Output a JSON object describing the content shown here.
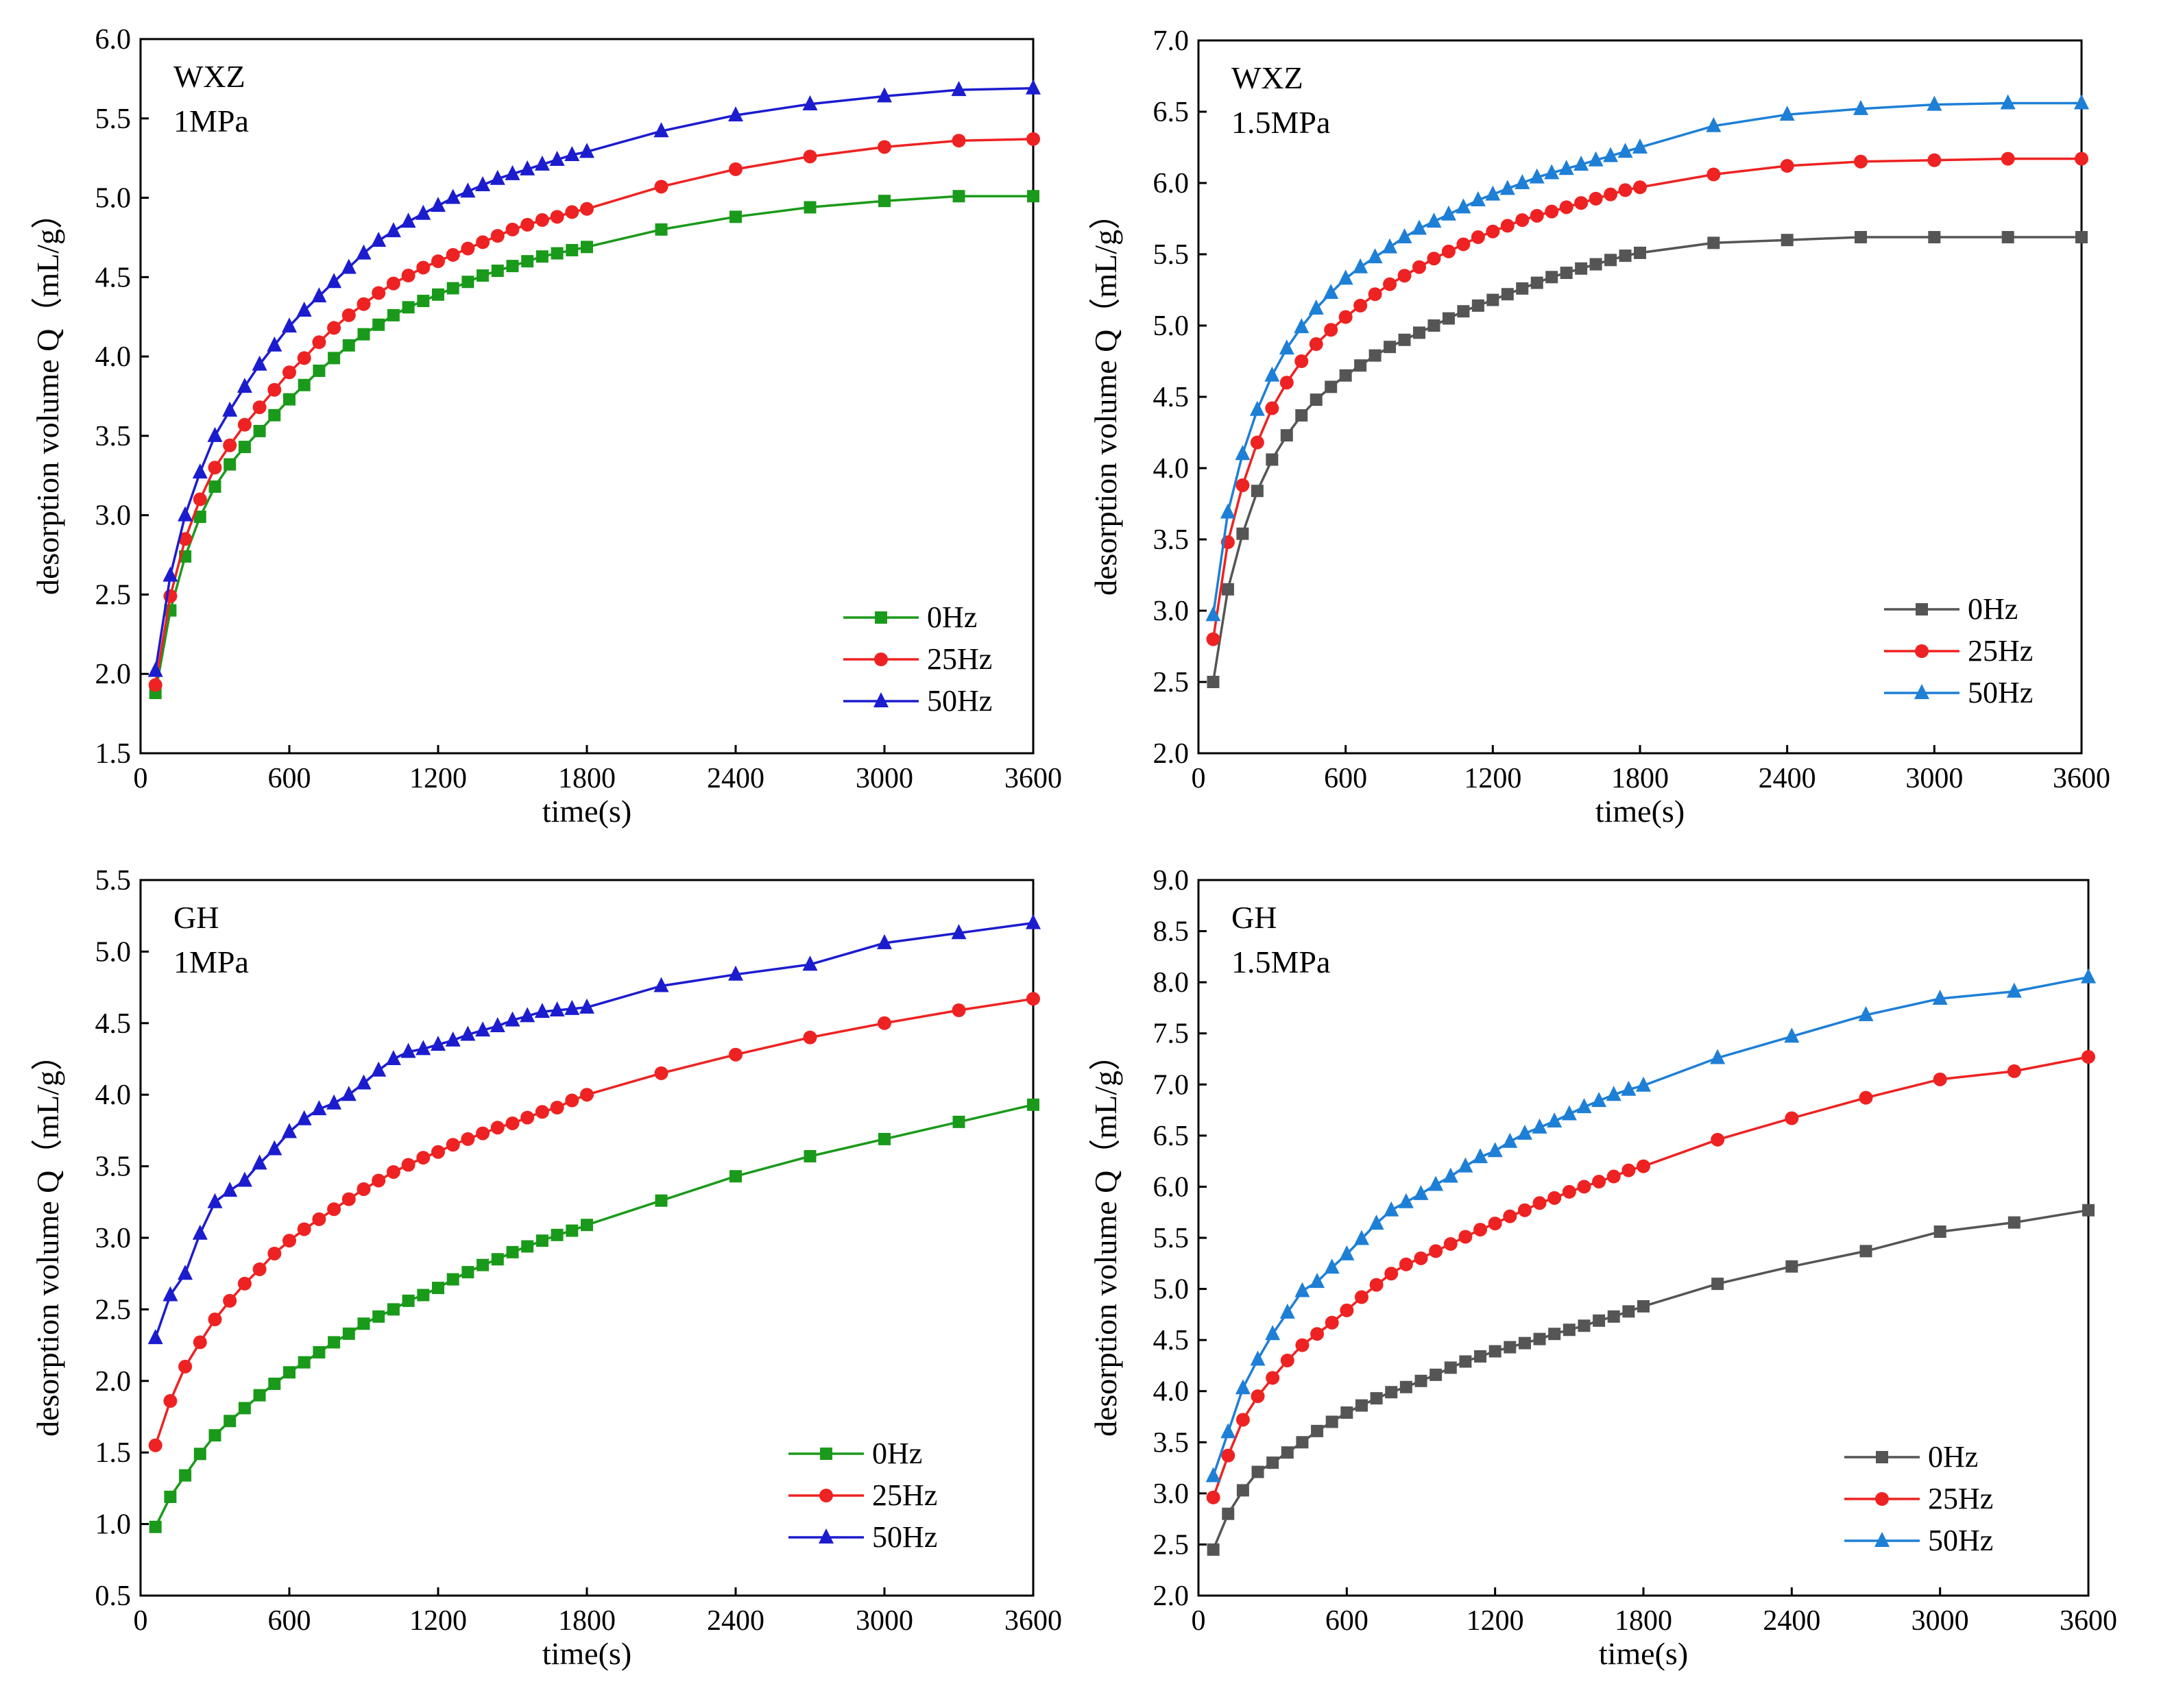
{
  "chart_data": [
    {
      "type": "line",
      "panel_label_line1": "WXZ",
      "panel_label_line2": "1MPa",
      "xlabel": "time(s)",
      "ylabel": "desorption volume Q（mL/g）",
      "xlim": [
        0,
        3600
      ],
      "ylim": [
        1.5,
        6.0
      ],
      "xticks": [
        "0",
        "600",
        "1200",
        "1800",
        "2400",
        "3000",
        "3600"
      ],
      "yticks": [
        "1.5",
        "2.0",
        "2.5",
        "3.0",
        "3.5",
        "4.0",
        "4.5",
        "5.0",
        "5.5",
        "6.0"
      ],
      "legend_position": "bottom-right",
      "x": [
        60,
        120,
        180,
        240,
        300,
        360,
        420,
        480,
        540,
        600,
        660,
        720,
        780,
        840,
        900,
        960,
        1020,
        1080,
        1140,
        1200,
        1260,
        1320,
        1380,
        1440,
        1500,
        1560,
        1620,
        1680,
        1740,
        1800,
        2100,
        2400,
        2700,
        3000,
        3300,
        3600
      ],
      "series": [
        {
          "name": "0Hz",
          "color": "#1a9a1a",
          "marker": "square",
          "values": [
            1.88,
            2.4,
            2.74,
            2.99,
            3.18,
            3.32,
            3.43,
            3.53,
            3.63,
            3.73,
            3.82,
            3.91,
            3.99,
            4.07,
            4.14,
            4.2,
            4.26,
            4.31,
            4.35,
            4.39,
            4.43,
            4.47,
            4.51,
            4.54,
            4.57,
            4.6,
            4.63,
            4.65,
            4.67,
            4.69,
            4.8,
            4.88,
            4.94,
            4.98,
            5.01,
            5.01
          ]
        },
        {
          "name": "25Hz",
          "color": "#ee2222",
          "marker": "circle",
          "values": [
            1.93,
            2.49,
            2.85,
            3.1,
            3.3,
            3.44,
            3.57,
            3.68,
            3.79,
            3.9,
            3.99,
            4.09,
            4.18,
            4.26,
            4.33,
            4.4,
            4.46,
            4.51,
            4.56,
            4.6,
            4.64,
            4.68,
            4.72,
            4.76,
            4.8,
            4.83,
            4.86,
            4.88,
            4.91,
            4.93,
            5.07,
            5.18,
            5.26,
            5.32,
            5.36,
            5.37
          ]
        },
        {
          "name": "50Hz",
          "color": "#1c1ccf",
          "marker": "triangle",
          "values": [
            2.02,
            2.62,
            3.0,
            3.27,
            3.5,
            3.66,
            3.81,
            3.95,
            4.07,
            4.19,
            4.29,
            4.38,
            4.47,
            4.56,
            4.65,
            4.73,
            4.79,
            4.85,
            4.9,
            4.95,
            5.0,
            5.04,
            5.08,
            5.12,
            5.15,
            5.18,
            5.21,
            5.24,
            5.27,
            5.29,
            5.42,
            5.52,
            5.59,
            5.64,
            5.68,
            5.69
          ]
        }
      ]
    },
    {
      "type": "line",
      "panel_label_line1": "WXZ",
      "panel_label_line2": "1.5MPa",
      "xlabel": "time(s)",
      "ylabel": "desorption volume Q（mL/g）",
      "xlim": [
        0,
        3600
      ],
      "ylim": [
        2.0,
        7.0
      ],
      "xticks": [
        "0",
        "600",
        "1200",
        "1800",
        "2400",
        "3000",
        "3600"
      ],
      "yticks": [
        "2.0",
        "2.5",
        "3.0",
        "3.5",
        "4.0",
        "4.5",
        "5.0",
        "5.5",
        "6.0",
        "6.5",
        "7.0"
      ],
      "legend_position": "bottom-right",
      "x": [
        60,
        120,
        180,
        240,
        300,
        360,
        420,
        480,
        540,
        600,
        660,
        720,
        780,
        840,
        900,
        960,
        1020,
        1080,
        1140,
        1200,
        1260,
        1320,
        1380,
        1440,
        1500,
        1560,
        1620,
        1680,
        1740,
        1800,
        2100,
        2400,
        2700,
        3000,
        3300,
        3600
      ],
      "series": [
        {
          "name": "0Hz",
          "color": "#555555",
          "marker": "square",
          "values": [
            2.5,
            3.15,
            3.54,
            3.84,
            4.06,
            4.23,
            4.37,
            4.48,
            4.57,
            4.65,
            4.72,
            4.79,
            4.85,
            4.9,
            4.95,
            5.0,
            5.05,
            5.1,
            5.14,
            5.18,
            5.22,
            5.26,
            5.3,
            5.34,
            5.37,
            5.4,
            5.43,
            5.46,
            5.49,
            5.51,
            5.58,
            5.6,
            5.62,
            5.62,
            5.62,
            5.62
          ]
        },
        {
          "name": "25Hz",
          "color": "#ee2222",
          "marker": "circle",
          "values": [
            2.8,
            3.48,
            3.88,
            4.18,
            4.42,
            4.6,
            4.75,
            4.87,
            4.97,
            5.06,
            5.14,
            5.22,
            5.29,
            5.35,
            5.41,
            5.47,
            5.52,
            5.57,
            5.62,
            5.66,
            5.7,
            5.74,
            5.77,
            5.8,
            5.83,
            5.86,
            5.89,
            5.92,
            5.95,
            5.97,
            6.06,
            6.12,
            6.15,
            6.16,
            6.17,
            6.17
          ]
        },
        {
          "name": "50Hz",
          "color": "#1e7fd6",
          "marker": "triangle",
          "values": [
            2.97,
            3.69,
            4.1,
            4.41,
            4.65,
            4.84,
            4.99,
            5.12,
            5.23,
            5.33,
            5.41,
            5.48,
            5.55,
            5.62,
            5.68,
            5.73,
            5.78,
            5.83,
            5.88,
            5.92,
            5.96,
            6.0,
            6.04,
            6.07,
            6.1,
            6.13,
            6.16,
            6.19,
            6.22,
            6.25,
            6.4,
            6.48,
            6.52,
            6.55,
            6.56,
            6.56
          ]
        }
      ]
    },
    {
      "type": "line",
      "panel_label_line1": "GH",
      "panel_label_line2": "1MPa",
      "xlabel": "time(s)",
      "ylabel": "desorption volume Q（mL/g）",
      "xlim": [
        0,
        3600
      ],
      "ylim": [
        0.5,
        5.5
      ],
      "xticks": [
        "0",
        "600",
        "1200",
        "1800",
        "2400",
        "3000",
        "3600"
      ],
      "yticks": [
        "0.5",
        "1.0",
        "1.5",
        "2.0",
        "2.5",
        "3.0",
        "3.5",
        "4.0",
        "4.5",
        "5.0",
        "5.5"
      ],
      "legend_position": "bottom-right",
      "x": [
        60,
        120,
        180,
        240,
        300,
        360,
        420,
        480,
        540,
        600,
        660,
        720,
        780,
        840,
        900,
        960,
        1020,
        1080,
        1140,
        1200,
        1260,
        1320,
        1380,
        1440,
        1500,
        1560,
        1620,
        1680,
        1740,
        1800,
        2100,
        2400,
        2700,
        3000,
        3300,
        3600
      ],
      "series": [
        {
          "name": "0Hz",
          "color": "#1a9a1a",
          "marker": "square",
          "values": [
            0.98,
            1.19,
            1.34,
            1.49,
            1.62,
            1.72,
            1.81,
            1.9,
            1.98,
            2.06,
            2.13,
            2.2,
            2.27,
            2.33,
            2.4,
            2.45,
            2.5,
            2.56,
            2.6,
            2.65,
            2.71,
            2.76,
            2.81,
            2.85,
            2.9,
            2.94,
            2.98,
            3.02,
            3.05,
            3.09,
            3.26,
            3.43,
            3.57,
            3.69,
            3.81,
            3.93
          ]
        },
        {
          "name": "25Hz",
          "color": "#ee2222",
          "marker": "circle",
          "values": [
            1.55,
            1.86,
            2.1,
            2.27,
            2.43,
            2.56,
            2.68,
            2.78,
            2.89,
            2.98,
            3.06,
            3.13,
            3.2,
            3.27,
            3.34,
            3.4,
            3.46,
            3.51,
            3.56,
            3.6,
            3.65,
            3.69,
            3.73,
            3.77,
            3.8,
            3.84,
            3.88,
            3.91,
            3.96,
            4.0,
            4.15,
            4.28,
            4.4,
            4.5,
            4.59,
            4.67
          ]
        },
        {
          "name": "50Hz",
          "color": "#1c1ccf",
          "marker": "triangle",
          "values": [
            2.3,
            2.6,
            2.75,
            3.03,
            3.25,
            3.33,
            3.4,
            3.52,
            3.62,
            3.74,
            3.83,
            3.9,
            3.94,
            4.0,
            4.08,
            4.17,
            4.25,
            4.3,
            4.32,
            4.35,
            4.38,
            4.42,
            4.45,
            4.48,
            4.52,
            4.55,
            4.58,
            4.59,
            4.6,
            4.61,
            4.76,
            4.84,
            4.91,
            5.06,
            5.13,
            5.2
          ]
        }
      ]
    },
    {
      "type": "line",
      "panel_label_line1": "GH",
      "panel_label_line2": "1.5MPa",
      "xlabel": "time(s)",
      "ylabel": "desorption volume Q（mL/g）",
      "xlim": [
        0,
        3600
      ],
      "ylim": [
        2.0,
        9.0
      ],
      "xticks": [
        "0",
        "600",
        "1200",
        "1800",
        "2400",
        "3000",
        "3600"
      ],
      "yticks": [
        "2.0",
        "2.5",
        "3.0",
        "3.5",
        "4.0",
        "4.5",
        "5.0",
        "5.5",
        "6.0",
        "6.5",
        "7.0",
        "7.5",
        "8.0",
        "8.5",
        "9.0"
      ],
      "legend_position": "bottom-right",
      "x": [
        60,
        120,
        180,
        240,
        300,
        360,
        420,
        480,
        540,
        600,
        660,
        720,
        780,
        840,
        900,
        960,
        1020,
        1080,
        1140,
        1200,
        1260,
        1320,
        1380,
        1440,
        1500,
        1560,
        1620,
        1680,
        1740,
        1800,
        2100,
        2400,
        2700,
        3000,
        3300,
        3600
      ],
      "series": [
        {
          "name": "0Hz",
          "color": "#555555",
          "marker": "square",
          "values": [
            2.45,
            2.8,
            3.03,
            3.21,
            3.3,
            3.4,
            3.5,
            3.61,
            3.7,
            3.79,
            3.86,
            3.93,
            3.99,
            4.04,
            4.1,
            4.16,
            4.23,
            4.29,
            4.34,
            4.39,
            4.43,
            4.47,
            4.51,
            4.56,
            4.6,
            4.64,
            4.69,
            4.73,
            4.78,
            4.83,
            5.05,
            5.22,
            5.37,
            5.56,
            5.65,
            5.77
          ]
        },
        {
          "name": "25Hz",
          "color": "#ee2222",
          "marker": "circle",
          "values": [
            2.96,
            3.37,
            3.72,
            3.95,
            4.13,
            4.3,
            4.45,
            4.56,
            4.67,
            4.79,
            4.92,
            5.04,
            5.15,
            5.24,
            5.3,
            5.37,
            5.44,
            5.51,
            5.58,
            5.64,
            5.71,
            5.77,
            5.84,
            5.89,
            5.95,
            6.0,
            6.05,
            6.1,
            6.16,
            6.2,
            6.46,
            6.67,
            6.87,
            7.05,
            7.13,
            7.27
          ]
        },
        {
          "name": "50Hz",
          "color": "#1e7fd6",
          "marker": "triangle",
          "values": [
            3.17,
            3.6,
            4.03,
            4.31,
            4.56,
            4.77,
            4.98,
            5.07,
            5.21,
            5.34,
            5.49,
            5.64,
            5.77,
            5.85,
            5.93,
            6.02,
            6.1,
            6.2,
            6.29,
            6.35,
            6.44,
            6.52,
            6.58,
            6.64,
            6.71,
            6.78,
            6.84,
            6.9,
            6.95,
            6.99,
            7.26,
            7.47,
            7.68,
            7.84,
            7.91,
            8.05
          ]
        }
      ]
    }
  ]
}
